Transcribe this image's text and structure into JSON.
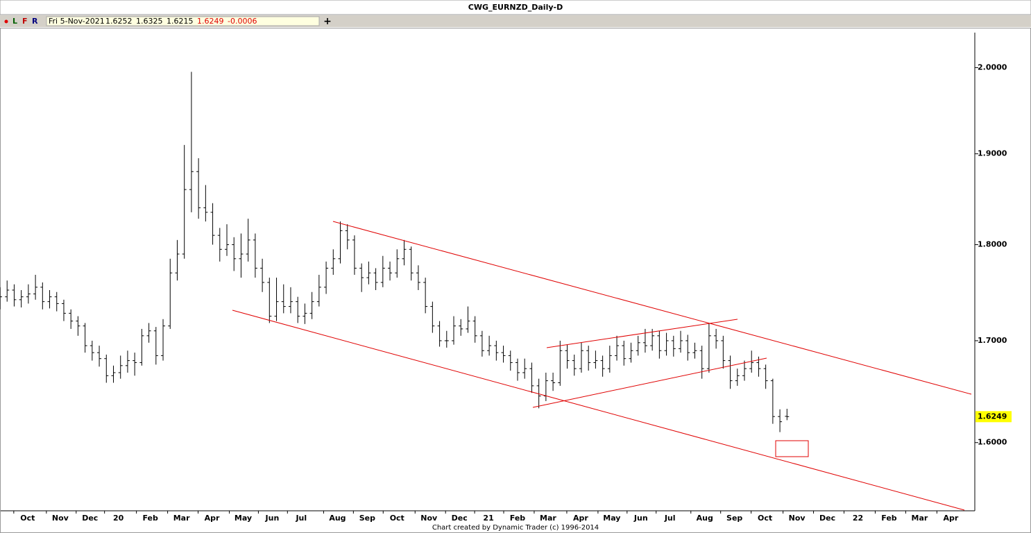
{
  "chart_data": {
    "type": "ohlc",
    "title": "CWG_EURNZD_Daily-D",
    "menu": [
      "L",
      "F",
      "R"
    ],
    "add_button": "+",
    "header_date": "Fri 5-Nov-2021",
    "change": -0.0006,
    "footer": "Chart created by Dynamic Trader  (c) 1996-2014",
    "log_scale": true,
    "color": "#000000",
    "annotation_color": "#e00000",
    "xlim": [
      0,
      137
    ],
    "ylim": [
      1.537,
      2.048
    ],
    "yticks": [
      {
        "value": 2.0,
        "label": "2.0000"
      },
      {
        "value": 1.9,
        "label": "1.9000"
      },
      {
        "value": 1.8,
        "label": "1.8000"
      },
      {
        "value": 1.7,
        "label": "1.7000"
      },
      {
        "value": 1.6,
        "label": "1.6000"
      }
    ],
    "last_price": {
      "value": 1.6249,
      "label": "1.6249"
    },
    "xticks": [
      {
        "value": 3.9,
        "label": "Oct"
      },
      {
        "value": 8.5,
        "label": "Nov"
      },
      {
        "value": 12.7,
        "label": "Dec"
      },
      {
        "value": 16.7,
        "label": "20"
      },
      {
        "value": 21.2,
        "label": "Feb"
      },
      {
        "value": 25.6,
        "label": "Mar"
      },
      {
        "value": 29.9,
        "label": "Apr"
      },
      {
        "value": 34.3,
        "label": "May"
      },
      {
        "value": 38.4,
        "label": "Jun"
      },
      {
        "value": 42.5,
        "label": "Jul"
      },
      {
        "value": 47.6,
        "label": "Aug"
      },
      {
        "value": 51.8,
        "label": "Sep"
      },
      {
        "value": 56,
        "label": "Oct"
      },
      {
        "value": 60.5,
        "label": "Nov"
      },
      {
        "value": 64.8,
        "label": "Dec"
      },
      {
        "value": 68.9,
        "label": "21"
      },
      {
        "value": 73,
        "label": "Feb"
      },
      {
        "value": 77.3,
        "label": "Mar"
      },
      {
        "value": 81.9,
        "label": "Apr"
      },
      {
        "value": 86.3,
        "label": "May"
      },
      {
        "value": 90.4,
        "label": "Jun"
      },
      {
        "value": 94.5,
        "label": "Jul"
      },
      {
        "value": 99.4,
        "label": "Aug"
      },
      {
        "value": 103.6,
        "label": "Sep"
      },
      {
        "value": 107.9,
        "label": "Oct"
      },
      {
        "value": 112.4,
        "label": "Nov"
      },
      {
        "value": 116.7,
        "label": "Dec"
      },
      {
        "value": 121,
        "label": "22"
      },
      {
        "value": 125.4,
        "label": "Feb"
      },
      {
        "value": 129.7,
        "label": "Mar"
      },
      {
        "value": 134.1,
        "label": "Apr"
      }
    ],
    "ohlc": [
      [
        1.74,
        1.755,
        1.732,
        1.745
      ],
      [
        1.745,
        1.762,
        1.74,
        1.752
      ],
      [
        1.752,
        1.758,
        1.735,
        1.742
      ],
      [
        1.742,
        1.752,
        1.734,
        1.745
      ],
      [
        1.745,
        1.758,
        1.738,
        1.748
      ],
      [
        1.748,
        1.768,
        1.742,
        1.755
      ],
      [
        1.755,
        1.76,
        1.732,
        1.74
      ],
      [
        1.74,
        1.752,
        1.733,
        1.745
      ],
      [
        1.745,
        1.75,
        1.73,
        1.738
      ],
      [
        1.738,
        1.742,
        1.72,
        1.728
      ],
      [
        1.728,
        1.732,
        1.712,
        1.72
      ],
      [
        1.72,
        1.725,
        1.705,
        1.715
      ],
      [
        1.715,
        1.718,
        1.688,
        1.695
      ],
      [
        1.695,
        1.7,
        1.68,
        1.688
      ],
      [
        1.688,
        1.695,
        1.674,
        1.682
      ],
      [
        1.682,
        1.686,
        1.658,
        1.665
      ],
      [
        1.665,
        1.675,
        1.658,
        1.668
      ],
      [
        1.668,
        1.685,
        1.662,
        1.675
      ],
      [
        1.675,
        1.69,
        1.668,
        1.68
      ],
      [
        1.68,
        1.688,
        1.665,
        1.678
      ],
      [
        1.678,
        1.712,
        1.675,
        1.705
      ],
      [
        1.705,
        1.718,
        1.698,
        1.71
      ],
      [
        1.71,
        1.714,
        1.676,
        1.685
      ],
      [
        1.685,
        1.722,
        1.68,
        1.715
      ],
      [
        1.715,
        1.785,
        1.712,
        1.77
      ],
      [
        1.77,
        1.805,
        1.762,
        1.79
      ],
      [
        1.79,
        1.91,
        1.785,
        1.86
      ],
      [
        1.86,
        1.995,
        1.835,
        1.88
      ],
      [
        1.88,
        1.895,
        1.828,
        1.84
      ],
      [
        1.84,
        1.865,
        1.825,
        1.835
      ],
      [
        1.835,
        1.845,
        1.8,
        1.81
      ],
      [
        1.81,
        1.818,
        1.782,
        1.795
      ],
      [
        1.795,
        1.822,
        1.788,
        1.8
      ],
      [
        1.8,
        1.808,
        1.772,
        1.785
      ],
      [
        1.785,
        1.812,
        1.765,
        1.79
      ],
      [
        1.79,
        1.828,
        1.782,
        1.805
      ],
      [
        1.805,
        1.812,
        1.765,
        1.775
      ],
      [
        1.775,
        1.785,
        1.75,
        1.76
      ],
      [
        1.76,
        1.765,
        1.718,
        1.725
      ],
      [
        1.725,
        1.765,
        1.72,
        1.74
      ],
      [
        1.74,
        1.758,
        1.728,
        1.735
      ],
      [
        1.735,
        1.755,
        1.728,
        1.74
      ],
      [
        1.74,
        1.745,
        1.718,
        1.725
      ],
      [
        1.725,
        1.738,
        1.717,
        1.728
      ],
      [
        1.728,
        1.75,
        1.722,
        1.74
      ],
      [
        1.74,
        1.768,
        1.735,
        1.755
      ],
      [
        1.755,
        1.782,
        1.748,
        1.775
      ],
      [
        1.775,
        1.795,
        1.768,
        1.785
      ],
      [
        1.785,
        1.825,
        1.78,
        1.815
      ],
      [
        1.815,
        1.822,
        1.795,
        1.805
      ],
      [
        1.805,
        1.81,
        1.768,
        1.775
      ],
      [
        1.775,
        1.78,
        1.75,
        1.765
      ],
      [
        1.765,
        1.782,
        1.758,
        1.77
      ],
      [
        1.77,
        1.775,
        1.752,
        1.76
      ],
      [
        1.76,
        1.788,
        1.755,
        1.775
      ],
      [
        1.775,
        1.782,
        1.762,
        1.77
      ],
      [
        1.77,
        1.795,
        1.765,
        1.785
      ],
      [
        1.785,
        1.805,
        1.778,
        1.795
      ],
      [
        1.795,
        1.798,
        1.762,
        1.77
      ],
      [
        1.77,
        1.778,
        1.752,
        1.76
      ],
      [
        1.76,
        1.765,
        1.728,
        1.735
      ],
      [
        1.735,
        1.74,
        1.708,
        1.715
      ],
      [
        1.715,
        1.72,
        1.694,
        1.7
      ],
      [
        1.7,
        1.71,
        1.693,
        1.7
      ],
      [
        1.7,
        1.725,
        1.696,
        1.715
      ],
      [
        1.715,
        1.722,
        1.705,
        1.712
      ],
      [
        1.712,
        1.735,
        1.708,
        1.72
      ],
      [
        1.72,
        1.725,
        1.698,
        1.705
      ],
      [
        1.705,
        1.71,
        1.684,
        1.69
      ],
      [
        1.69,
        1.705,
        1.685,
        1.695
      ],
      [
        1.695,
        1.7,
        1.68,
        1.688
      ],
      [
        1.688,
        1.695,
        1.678,
        1.685
      ],
      [
        1.685,
        1.69,
        1.67,
        1.678
      ],
      [
        1.678,
        1.682,
        1.66,
        1.668
      ],
      [
        1.668,
        1.682,
        1.662,
        1.672
      ],
      [
        1.672,
        1.678,
        1.648,
        1.655
      ],
      [
        1.655,
        1.662,
        1.633,
        1.645
      ],
      [
        1.645,
        1.668,
        1.64,
        1.66
      ],
      [
        1.66,
        1.668,
        1.65,
        1.658
      ],
      [
        1.658,
        1.7,
        1.655,
        1.69
      ],
      [
        1.69,
        1.696,
        1.672,
        1.68
      ],
      [
        1.68,
        1.686,
        1.665,
        1.672
      ],
      [
        1.672,
        1.698,
        1.668,
        1.69
      ],
      [
        1.69,
        1.695,
        1.67,
        1.678
      ],
      [
        1.678,
        1.69,
        1.672,
        1.68
      ],
      [
        1.68,
        1.685,
        1.664,
        1.672
      ],
      [
        1.672,
        1.695,
        1.668,
        1.685
      ],
      [
        1.685,
        1.705,
        1.68,
        1.695
      ],
      [
        1.695,
        1.7,
        1.675,
        1.682
      ],
      [
        1.682,
        1.698,
        1.678,
        1.69
      ],
      [
        1.69,
        1.705,
        1.685,
        1.698
      ],
      [
        1.698,
        1.712,
        1.688,
        1.695
      ],
      [
        1.695,
        1.712,
        1.69,
        1.705
      ],
      [
        1.705,
        1.71,
        1.682,
        1.69
      ],
      [
        1.69,
        1.708,
        1.685,
        1.7
      ],
      [
        1.7,
        1.705,
        1.684,
        1.692
      ],
      [
        1.692,
        1.71,
        1.688,
        1.7
      ],
      [
        1.7,
        1.706,
        1.68,
        1.688
      ],
      [
        1.688,
        1.698,
        1.682,
        1.69
      ],
      [
        1.69,
        1.695,
        1.662,
        1.672
      ],
      [
        1.672,
        1.718,
        1.668,
        1.705
      ],
      [
        1.705,
        1.712,
        1.692,
        1.7
      ],
      [
        1.7,
        1.705,
        1.672,
        1.68
      ],
      [
        1.68,
        1.685,
        1.652,
        1.66
      ],
      [
        1.66,
        1.672,
        1.655,
        1.665
      ],
      [
        1.665,
        1.68,
        1.66,
        1.672
      ],
      [
        1.672,
        1.69,
        1.668,
        1.678
      ],
      [
        1.678,
        1.684,
        1.664,
        1.672
      ],
      [
        1.672,
        1.676,
        1.652,
        1.66
      ],
      [
        1.66,
        1.662,
        1.618,
        1.625
      ],
      [
        1.625,
        1.632,
        1.61,
        1.62
      ],
      [
        1.6252,
        1.6325,
        1.6215,
        1.6249
      ]
    ]
  }
}
